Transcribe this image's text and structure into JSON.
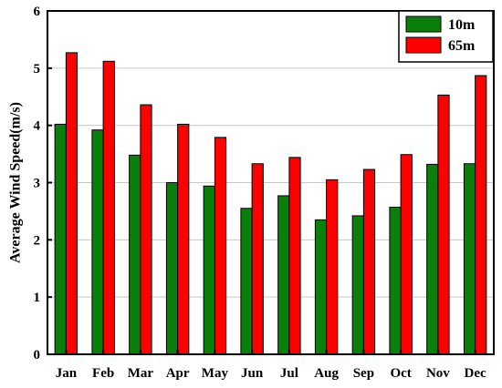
{
  "chart_data": {
    "type": "bar",
    "categories": [
      "Jan",
      "Feb",
      "Mar",
      "Apr",
      "May",
      "Jun",
      "Jul",
      "Aug",
      "Sep",
      "Oct",
      "Nov",
      "Dec"
    ],
    "series": [
      {
        "name": "10m",
        "color": "#0a800a",
        "values": [
          4.02,
          3.92,
          3.48,
          3.0,
          2.94,
          2.55,
          2.77,
          2.35,
          2.42,
          2.57,
          3.32,
          3.33
        ]
      },
      {
        "name": "65m",
        "color": "#ff0000",
        "values": [
          5.27,
          5.12,
          4.36,
          4.02,
          3.79,
          3.33,
          3.44,
          3.05,
          3.23,
          3.49,
          4.53,
          4.87
        ]
      }
    ],
    "title": "",
    "xlabel": "",
    "ylabel": "Average Wind Speed(m/s)",
    "ylim": [
      0,
      6
    ],
    "yticks": [
      "0",
      "1",
      "2",
      "3",
      "4",
      "5",
      "6"
    ],
    "grid": true,
    "legend_position": "top-right"
  }
}
